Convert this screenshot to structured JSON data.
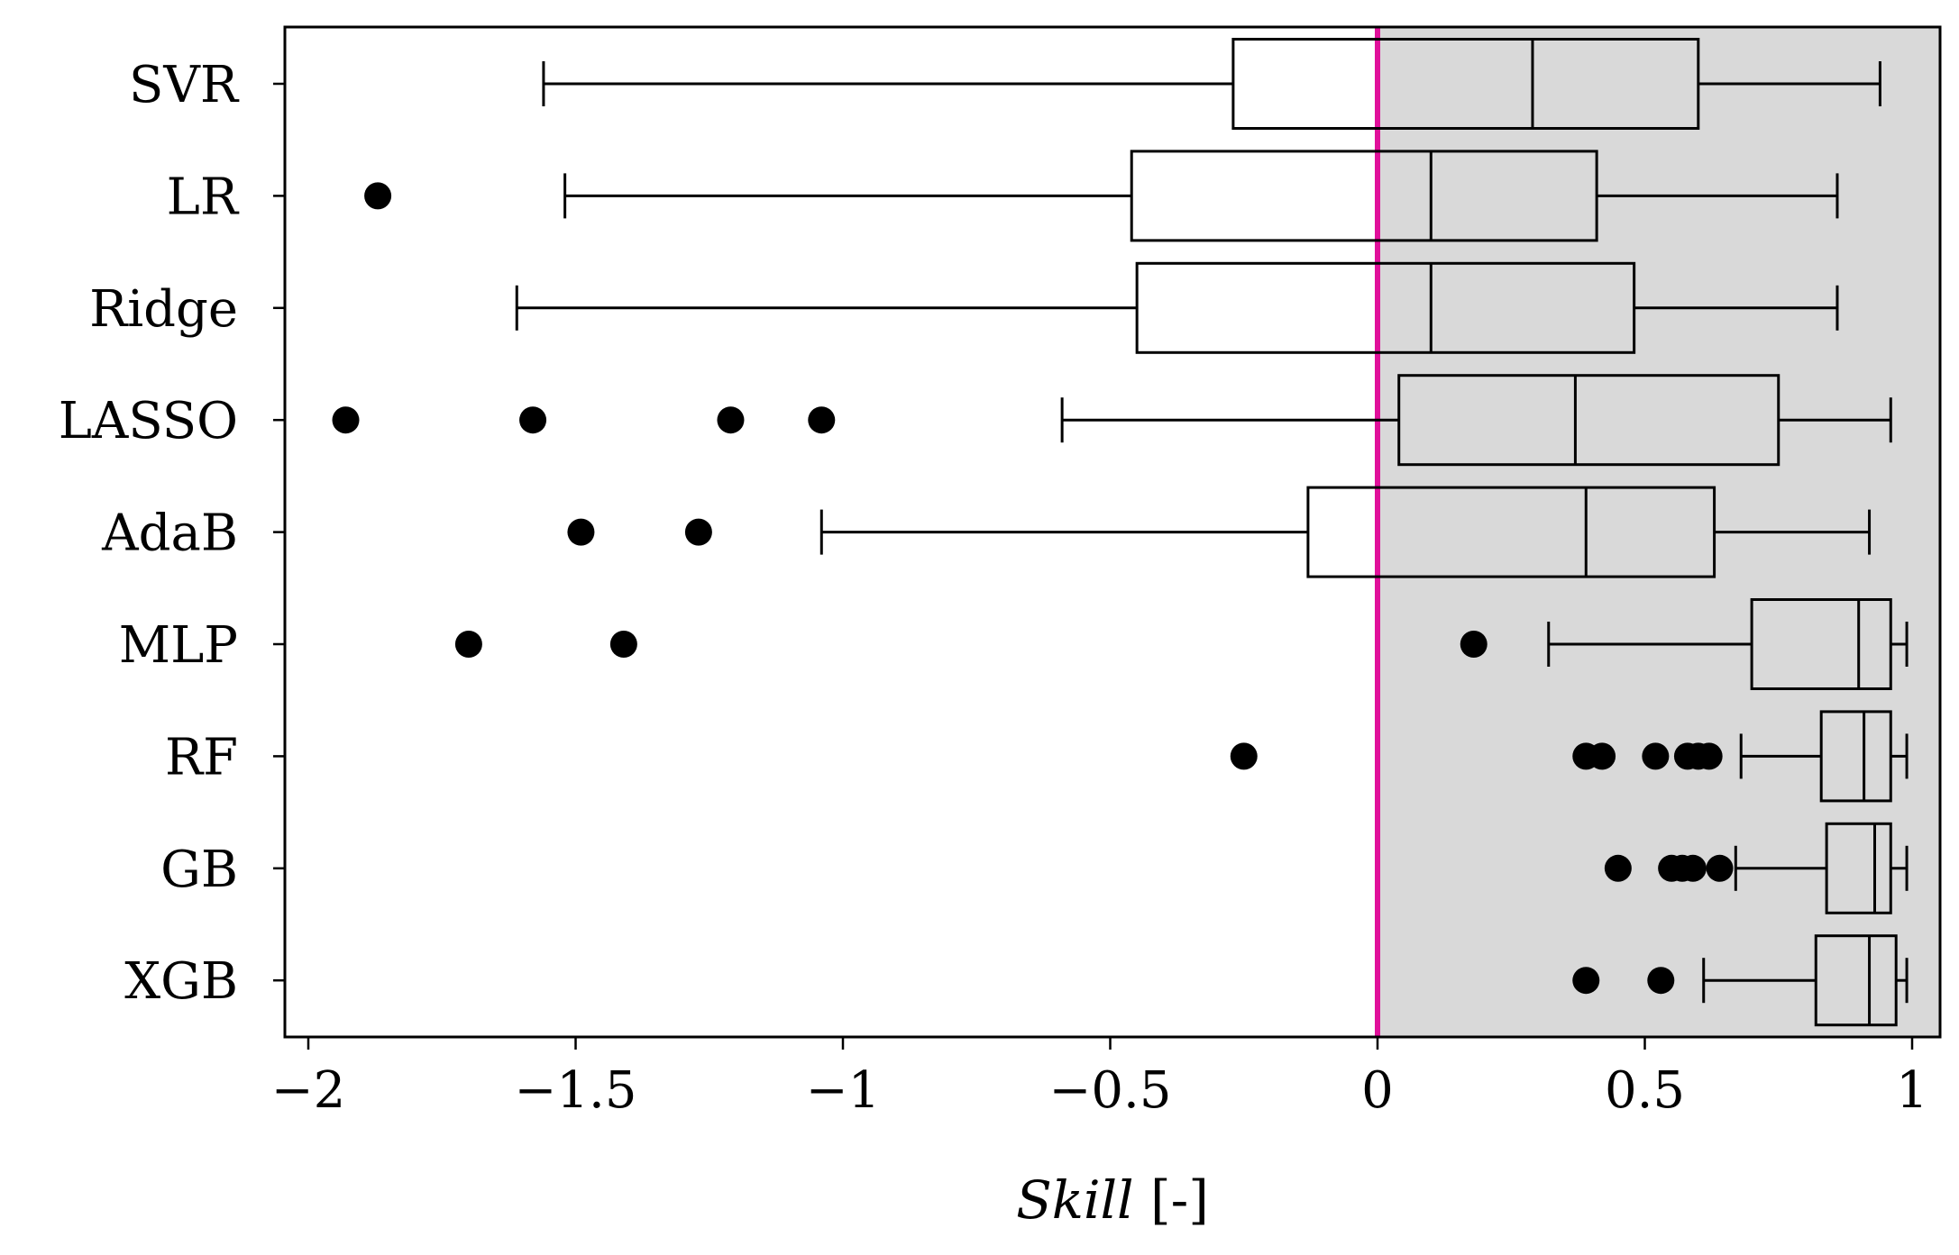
{
  "chart_data": {
    "type": "boxplot",
    "orientation": "horizontal",
    "xlabel": {
      "italic": "Skill",
      "unit": " [-]"
    },
    "xlim": [
      -2.05,
      1.05
    ],
    "xticks": [
      {
        "value": -2,
        "label": "−2"
      },
      {
        "value": -1.5,
        "label": "−1.5"
      },
      {
        "value": -1,
        "label": "−1"
      },
      {
        "value": -0.5,
        "label": "−0.5"
      },
      {
        "value": 0,
        "label": "0"
      },
      {
        "value": 0.5,
        "label": "0.5"
      },
      {
        "value": 1,
        "label": "1"
      }
    ],
    "reference_line": {
      "x": 0,
      "color": "#e0109a"
    },
    "shaded_region": {
      "from": 0,
      "to": 1.05,
      "color": "#d9d9d9"
    },
    "series": [
      {
        "name": "SVR",
        "whisker_low": -1.56,
        "q1": -0.27,
        "median": 0.29,
        "q3": 0.6,
        "whisker_high": 0.94,
        "outliers": []
      },
      {
        "name": "LR",
        "whisker_low": -1.52,
        "q1": -0.46,
        "median": 0.1,
        "q3": 0.41,
        "whisker_high": 0.86,
        "outliers": [
          -1.87
        ]
      },
      {
        "name": "Ridge",
        "whisker_low": -1.61,
        "q1": -0.45,
        "median": 0.1,
        "q3": 0.48,
        "whisker_high": 0.86,
        "outliers": []
      },
      {
        "name": "LASSO",
        "whisker_low": -0.59,
        "q1": 0.04,
        "median": 0.37,
        "q3": 0.75,
        "whisker_high": 0.96,
        "outliers": [
          -1.93,
          -1.58,
          -1.21,
          -1.04
        ]
      },
      {
        "name": "AdaB",
        "whisker_low": -1.04,
        "q1": -0.13,
        "median": 0.39,
        "q3": 0.63,
        "whisker_high": 0.92,
        "outliers": [
          -1.49,
          -1.27
        ]
      },
      {
        "name": "MLP",
        "whisker_low": 0.32,
        "q1": 0.7,
        "median": 0.9,
        "q3": 0.96,
        "whisker_high": 0.99,
        "outliers": [
          -1.7,
          -1.41,
          0.18
        ]
      },
      {
        "name": "RF",
        "whisker_low": 0.68,
        "q1": 0.83,
        "median": 0.91,
        "q3": 0.96,
        "whisker_high": 0.99,
        "outliers": [
          -0.25,
          0.39,
          0.42,
          0.52,
          0.58,
          0.6,
          0.62
        ]
      },
      {
        "name": "GB",
        "whisker_low": 0.67,
        "q1": 0.84,
        "median": 0.93,
        "q3": 0.96,
        "whisker_high": 0.99,
        "outliers": [
          0.45,
          0.55,
          0.57,
          0.59,
          0.64
        ]
      },
      {
        "name": "XGB",
        "whisker_low": 0.61,
        "q1": 0.82,
        "median": 0.92,
        "q3": 0.97,
        "whisker_high": 0.99,
        "outliers": [
          0.39,
          0.53
        ]
      }
    ]
  }
}
